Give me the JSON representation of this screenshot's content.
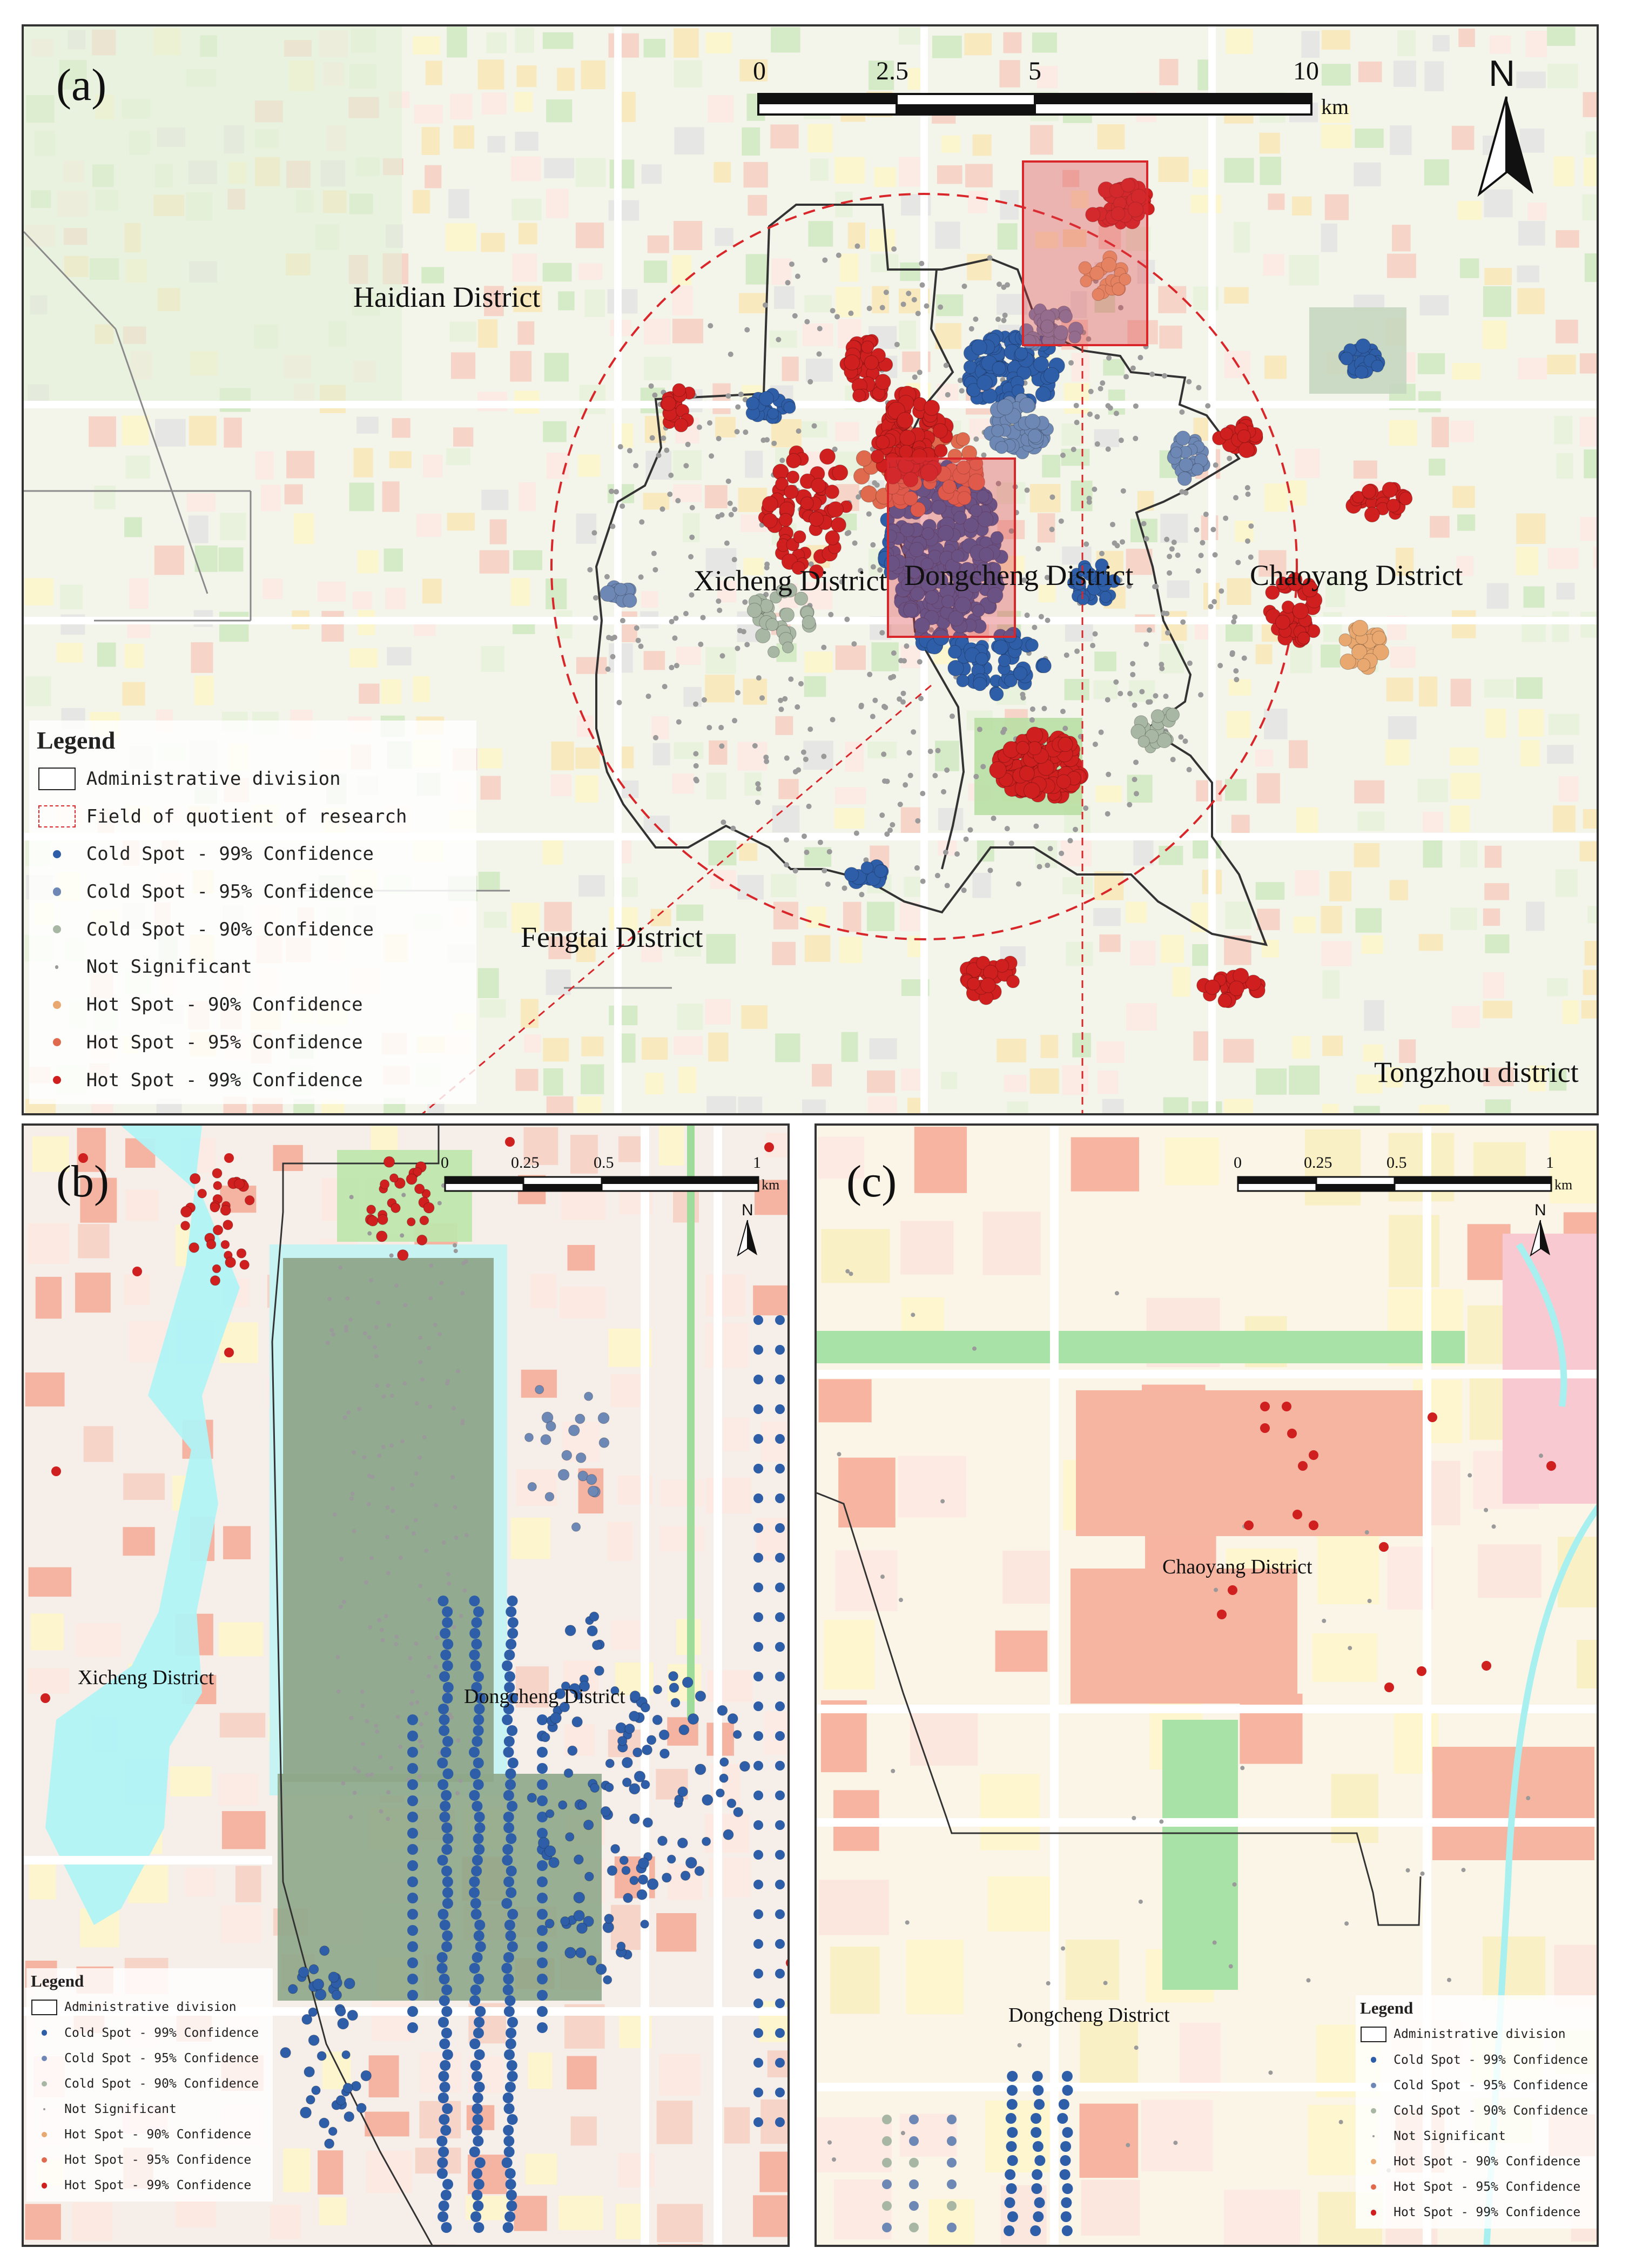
{
  "panels": {
    "a": {
      "label": "(a)",
      "scale": {
        "ticks": [
          "0",
          "2.5",
          "5",
          "10"
        ],
        "unit": "km"
      },
      "north": "N",
      "districts": {
        "haidian": "Haidian District",
        "xicheng": "Xicheng District",
        "dongcheng": "Dongcheng District",
        "chaoyang": "Chaoyang District",
        "fengtai": "Fengtai District",
        "tongzhou": "Tongzhou district"
      }
    },
    "b": {
      "label": "(b)",
      "scale": {
        "ticks": [
          "0",
          "0.25",
          "0.5",
          "1"
        ],
        "unit": "km"
      },
      "north": "N",
      "districts": {
        "xicheng": "Xicheng District",
        "dongcheng": "Dongcheng District"
      }
    },
    "c": {
      "label": "(c)",
      "scale": {
        "ticks": [
          "0",
          "0.25",
          "0.5",
          "1"
        ],
        "unit": "km"
      },
      "north": "N",
      "districts": {
        "chaoyang": "Chaoyang District",
        "dongcheng": "Dongcheng District"
      }
    }
  },
  "legend": {
    "title": "Legend",
    "admin": "Administrative division",
    "field": "Field of quotient of research",
    "items": [
      {
        "label": "Cold Spot - 99% Confidence",
        "color": "#2f5ea8"
      },
      {
        "label": "Cold Spot - 95% Confidence",
        "color": "#6e88b5"
      },
      {
        "label": "Cold Spot - 90% Confidence",
        "color": "#a8b6a4"
      },
      {
        "label": "Not Significant",
        "color": "#9a9a9a"
      },
      {
        "label": "Hot Spot - 90% Confidence",
        "color": "#e8a870"
      },
      {
        "label": "Hot Spot - 95% Confidence",
        "color": "#e06a4e"
      },
      {
        "label": "Hot Spot - 99% Confidence",
        "color": "#cf1f1f"
      }
    ]
  },
  "colors": {
    "boundary": "#333333",
    "research_field": "#d9262a",
    "highlight_box": "#d9262a",
    "water": "#b0f3f6",
    "green": "#bfe6ad",
    "residential": "#fdf6c9",
    "commercial": "#f6b5a1",
    "palace": "#8fa78a"
  }
}
